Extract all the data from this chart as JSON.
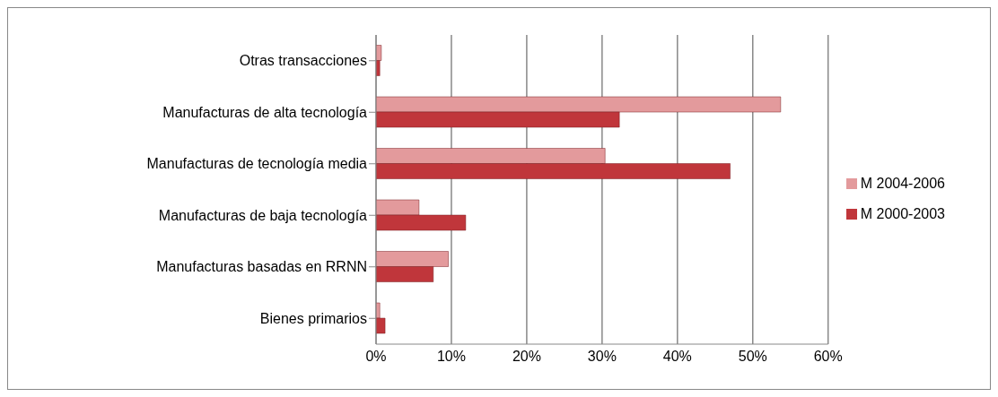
{
  "chart_data": {
    "type": "bar",
    "orientation": "horizontal",
    "categories": [
      "Otras transacciones",
      "Manufacturas de alta tecnología",
      "Manufacturas de tecnología media",
      "Manufacturas de baja tecnología",
      "Manufacturas basadas en RRNN",
      "Bienes primarios"
    ],
    "series": [
      {
        "name": "M 2004-2006",
        "color": "#e39a9c",
        "values": [
          0.7,
          53.7,
          30.4,
          5.7,
          9.6,
          0.5
        ]
      },
      {
        "name": "M 2000-2003",
        "color": "#c0363b",
        "values": [
          0.5,
          32.3,
          47.0,
          11.9,
          7.6,
          1.2
        ]
      }
    ],
    "xlim": [
      0,
      60
    ],
    "xticks": [
      {
        "value": 0,
        "label": "0%"
      },
      {
        "value": 10,
        "label": "10%"
      },
      {
        "value": 20,
        "label": "20%"
      },
      {
        "value": 30,
        "label": "30%"
      },
      {
        "value": 40,
        "label": "40%"
      },
      {
        "value": 50,
        "label": "50%"
      },
      {
        "value": 60,
        "label": "60%"
      }
    ],
    "grid": "x",
    "legend": "right"
  }
}
